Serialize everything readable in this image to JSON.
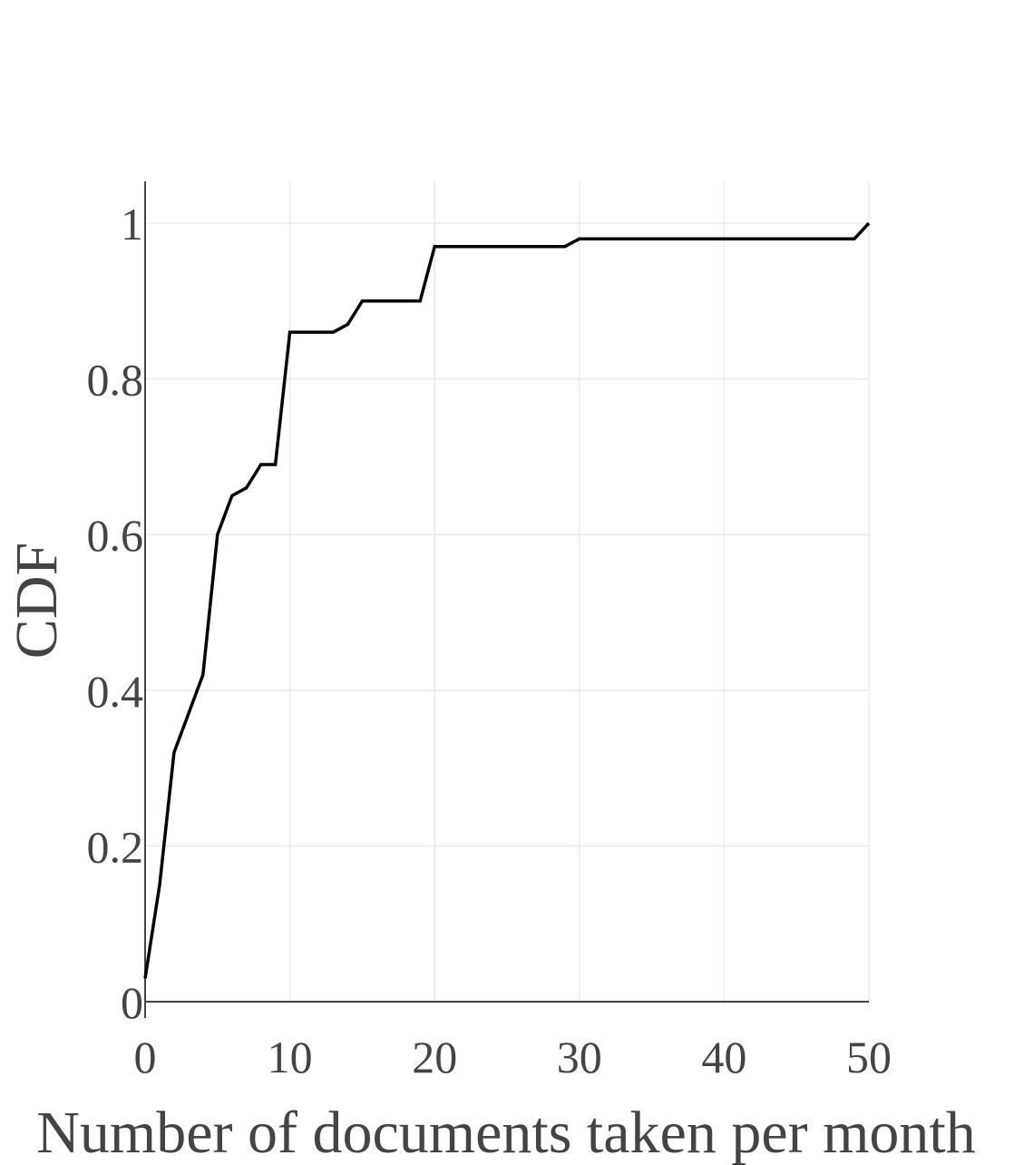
{
  "chart_data": {
    "type": "line",
    "title": "",
    "xlabel": "Number of documents taken per month",
    "ylabel": "CDF",
    "xlim": [
      0,
      50
    ],
    "ylim": [
      0,
      1.05
    ],
    "x_ticks": [
      0,
      10,
      20,
      30,
      40,
      50
    ],
    "x_tick_labels": [
      "0",
      "10",
      "20",
      "30",
      "40",
      "50"
    ],
    "y_ticks": [
      0,
      0.2,
      0.4,
      0.6,
      0.8,
      1
    ],
    "y_tick_labels": [
      "0",
      "0.2",
      "0.4",
      "0.6",
      "0.8",
      "1"
    ],
    "grid": true,
    "legend": "none",
    "series": [
      {
        "color": "#000000",
        "x": [
          0,
          1,
          2,
          3,
          4,
          5,
          6,
          7,
          8,
          9,
          10,
          11,
          12,
          13,
          14,
          15,
          16,
          17,
          18,
          19,
          20,
          29,
          30,
          49,
          50
        ],
        "y": [
          0.03,
          0.15,
          0.32,
          0.37,
          0.42,
          0.6,
          0.65,
          0.66,
          0.69,
          0.69,
          0.86,
          0.86,
          0.86,
          0.86,
          0.87,
          0.9,
          0.9,
          0.9,
          0.9,
          0.9,
          0.97,
          0.97,
          0.98,
          0.98,
          1.0
        ]
      }
    ]
  }
}
